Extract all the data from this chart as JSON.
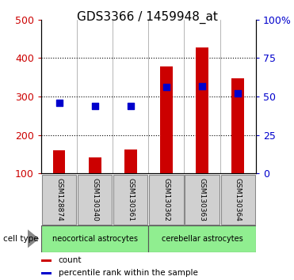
{
  "title": "GDS3366 / 1459948_at",
  "categories": [
    "GSM128874",
    "GSM130340",
    "GSM130361",
    "GSM130362",
    "GSM130363",
    "GSM130364"
  ],
  "counts": [
    160,
    143,
    162,
    378,
    428,
    347
  ],
  "percentile_ranks": [
    46,
    44,
    44,
    56,
    57,
    52
  ],
  "ylim_left": [
    100,
    500
  ],
  "ylim_right": [
    0,
    100
  ],
  "yticks_left": [
    100,
    200,
    300,
    400,
    500
  ],
  "yticks_right": [
    0,
    25,
    50,
    75,
    100
  ],
  "yticklabels_right": [
    "0",
    "25",
    "50",
    "75",
    "100%"
  ],
  "bar_color": "#cc0000",
  "dot_color": "#0000cc",
  "bar_bottom": 100,
  "cell_type_label": "cell type",
  "legend_count_label": "count",
  "legend_percentile_label": "percentile rank within the sample",
  "title_fontsize": 11,
  "tick_fontsize": 9,
  "label_fontsize": 8,
  "background_color": "#ffffff",
  "bar_width": 0.35,
  "dot_size": 40,
  "group1_label": "neocortical astrocytes",
  "group2_label": "cerebellar astrocytes",
  "group_color": "#90ee90",
  "gsm_box_color": "#d0d0d0",
  "gsm_border_color": "#888888"
}
